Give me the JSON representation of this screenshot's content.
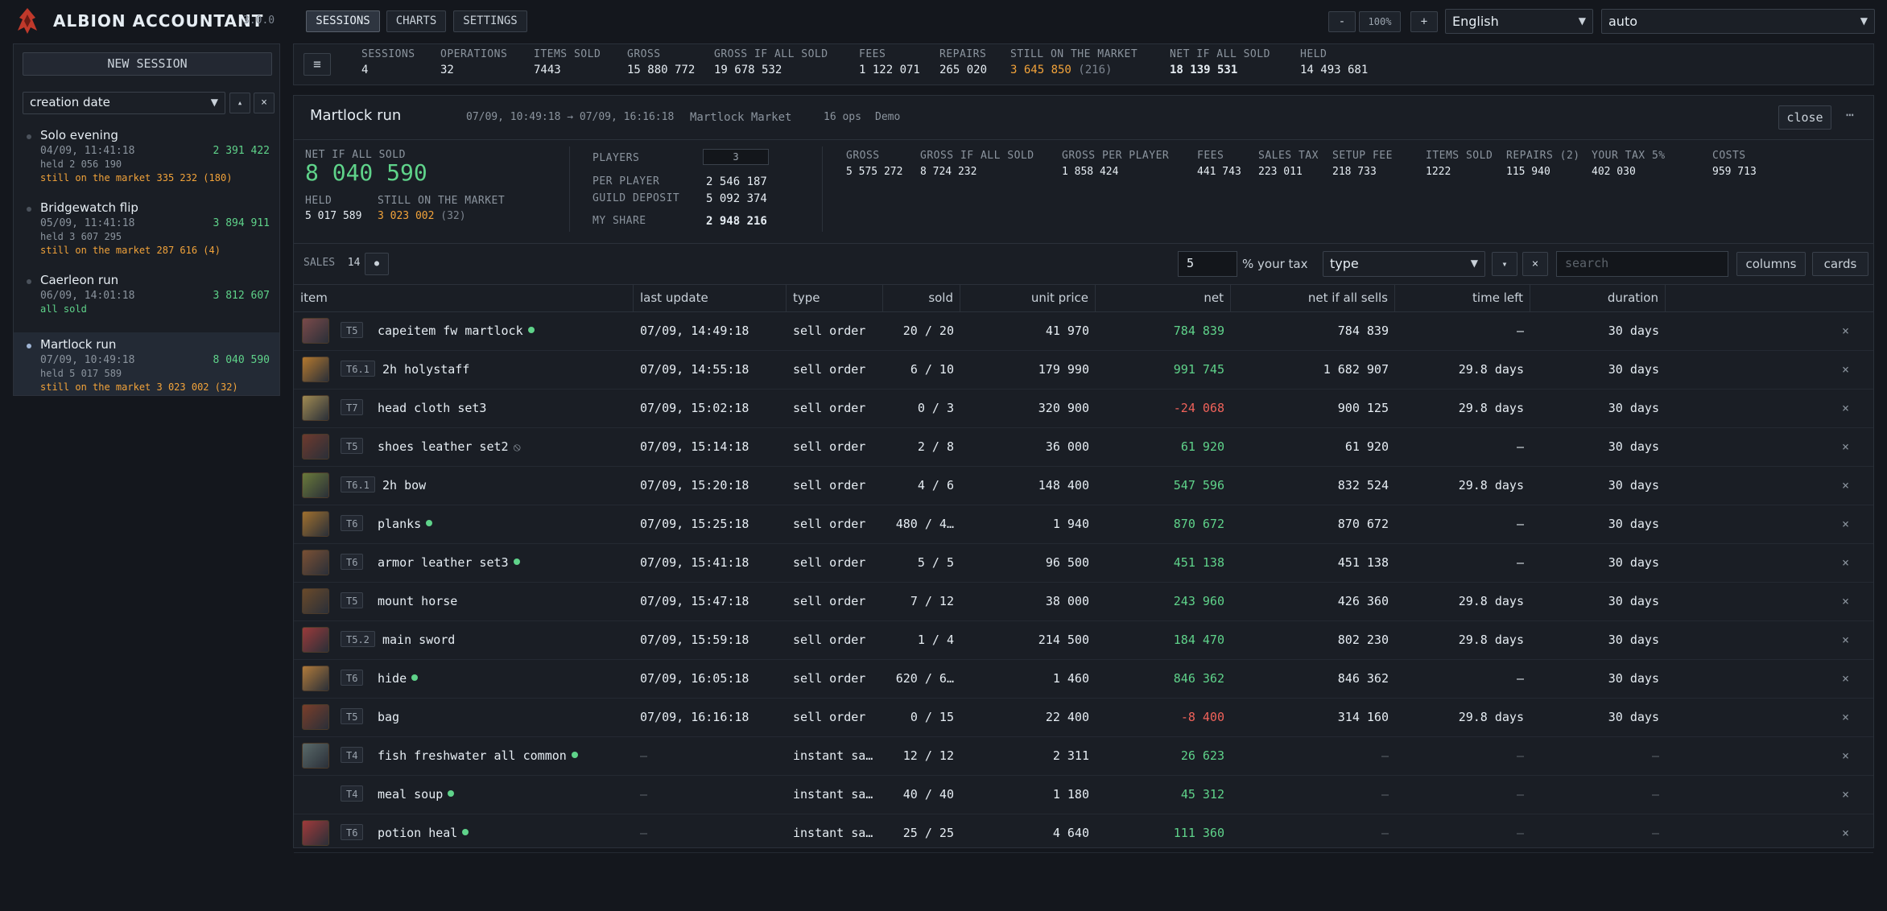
{
  "app": {
    "title": "ALBION ACCOUNTANT",
    "version": "3.0.0"
  },
  "nav": {
    "tabs": [
      "SESSIONS",
      "CHARTS",
      "SETTINGS"
    ],
    "active": 0
  },
  "zoom": {
    "minus": "-",
    "level": "100%",
    "plus": "+"
  },
  "language": {
    "selected": "English"
  },
  "theme": {
    "selected": "auto"
  },
  "sidebar": {
    "new_session": "NEW SESSION",
    "sort": {
      "selected": "creation date",
      "dir_label": "▴",
      "clear_label": "×"
    },
    "sessions": [
      {
        "name": "Solo evening",
        "date": "04/09, 11:41:18",
        "value": "2 391 422",
        "held": "held 2 056 190",
        "status": "still on the market 335 232 (180)",
        "status_ok": false,
        "active": false
      },
      {
        "name": "Bridgewatch flip",
        "date": "05/09, 11:41:18",
        "value": "3 894 911",
        "held": "held 3 607 295",
        "status": "still on the market 287 616 (4)",
        "status_ok": false,
        "active": false
      },
      {
        "name": "Caerleon run",
        "date": "06/09, 14:01:18",
        "value": "3 812 607",
        "held": "",
        "status": "all sold",
        "status_ok": true,
        "active": false
      },
      {
        "name": "Martlock run",
        "date": "07/09, 10:49:18",
        "value": "8 040 590",
        "held": "held 5 017 589",
        "status": "still on the market 3 023 002 (32)",
        "status_ok": false,
        "active": true
      }
    ]
  },
  "summary": {
    "menu_label": "≡",
    "sessions": {
      "label": "SESSIONS",
      "value": "4"
    },
    "operations": {
      "label": "OPERATIONS",
      "value": "32"
    },
    "items_sold": {
      "label": "ITEMS SOLD",
      "value": "7443"
    },
    "gross": {
      "label": "GROSS",
      "value": "15 880 772"
    },
    "gross_all": {
      "label": "GROSS IF ALL SOLD",
      "value": "19 678 532"
    },
    "fees": {
      "label": "FEES",
      "value": "1 122 071"
    },
    "repairs": {
      "label": "REPAIRS",
      "value": "265 020"
    },
    "on_market": {
      "label": "STILL ON THE MARKET",
      "value": "3 645 850",
      "count": "(216)"
    },
    "net_all": {
      "label": "NET IF ALL SOLD",
      "value": "18 139 531"
    },
    "held": {
      "label": "HELD",
      "value": "14 493 681"
    }
  },
  "session": {
    "title": "Martlock run",
    "range": "07/09, 10:49:18 → 07/09, 16:16:18",
    "market": "Martlock Market",
    "ops": "16 ops",
    "tag": "Demo",
    "close_label": "close",
    "more_label": "⋯",
    "net_label": "NET IF ALL SOLD",
    "net_value": "8 040 590",
    "held_label": "HELD",
    "held_value": "5 017 589",
    "market_label": "STILL ON THE MARKET",
    "market_value": "3 023 002",
    "market_count": "(32)",
    "players_label": "PLAYERS",
    "players_value": "3",
    "per_player_label": "PER PLAYER",
    "per_player_value": "2 546 187",
    "guild_label": "GUILD DEPOSIT",
    "guild_value": "5 092 374",
    "share_label": "MY SHARE",
    "share_value": "2 948 216",
    "stats": [
      {
        "label": "GROSS",
        "value": "5 575 272"
      },
      {
        "label": "GROSS IF ALL SOLD",
        "value": "8 724 232"
      },
      {
        "label": "GROSS PER PLAYER",
        "value": "1 858 424"
      },
      {
        "label": "FEES",
        "value": "441 743"
      },
      {
        "label": "SALES TAX",
        "value": "223 011"
      },
      {
        "label": "SETUP FEE",
        "value": "218 733"
      },
      {
        "label": "ITEMS SOLD",
        "value": "1222"
      },
      {
        "label": "REPAIRS (2)",
        "value": "115 940"
      },
      {
        "label": "YOUR TAX 5%",
        "value": "402 030"
      },
      {
        "label": "COSTS",
        "value": "959 713"
      }
    ]
  },
  "sales": {
    "label": "SALES",
    "count": "14",
    "toggle_label": "●",
    "tax_value": "5",
    "tax_label": "% your tax",
    "type_filter": "type",
    "sort_dir": "▾",
    "clear_label": "×",
    "search_placeholder": "search",
    "columns_label": "columns",
    "cards_label": "cards",
    "headers": [
      "item",
      "last update",
      "type",
      "sold",
      "unit price",
      "net",
      "net if all sells",
      "time left",
      "duration"
    ],
    "rows": [
      {
        "tier": "T5",
        "name": "capeitem fw martlock",
        "dot": true,
        "ban": false,
        "updated": "07/09, 14:49:18",
        "type": "sell order",
        "sold": "20 / 20",
        "price": "41 970",
        "net": "784 839",
        "net_sign": "pos",
        "net_all": "784 839",
        "time_left": "—",
        "duration": "30 days",
        "thumb": "#7a4a4a"
      },
      {
        "tier": "T6.1",
        "name": "2h holystaff",
        "dot": false,
        "ban": false,
        "updated": "07/09, 14:55:18",
        "type": "sell order",
        "sold": "6 / 10",
        "price": "179 990",
        "net": "991 745",
        "net_sign": "pos",
        "net_all": "1 682 907",
        "time_left": "29.8 days",
        "duration": "30 days",
        "thumb": "#b4782e"
      },
      {
        "tier": "T7",
        "name": "head cloth set3",
        "dot": false,
        "ban": false,
        "updated": "07/09, 15:02:18",
        "type": "sell order",
        "sold": "0 / 3",
        "price": "320 900",
        "net": "-24 068",
        "net_sign": "neg",
        "net_all": "900 125",
        "time_left": "29.8 days",
        "duration": "30 days",
        "thumb": "#a08a52"
      },
      {
        "tier": "T5",
        "name": "shoes leather set2",
        "dot": false,
        "ban": true,
        "updated": "07/09, 15:14:18",
        "type": "sell order",
        "sold": "2 / 8",
        "price": "36 000",
        "net": "61 920",
        "net_sign": "pos",
        "net_all": "61 920",
        "time_left": "—",
        "duration": "30 days",
        "thumb": "#6e3a2e"
      },
      {
        "tier": "T6.1",
        "name": "2h bow",
        "dot": false,
        "ban": false,
        "updated": "07/09, 15:20:18",
        "type": "sell order",
        "sold": "4 / 6",
        "price": "148 400",
        "net": "547 596",
        "net_sign": "pos",
        "net_all": "832 524",
        "time_left": "29.8 days",
        "duration": "30 days",
        "thumb": "#6a7a3a"
      },
      {
        "tier": "T6",
        "name": "planks",
        "dot": true,
        "ban": false,
        "updated": "07/09, 15:25:18",
        "type": "sell order",
        "sold": "480 / 4…",
        "price": "1 940",
        "net": "870 672",
        "net_sign": "pos",
        "net_all": "870 672",
        "time_left": "—",
        "duration": "30 days",
        "thumb": "#a0702e"
      },
      {
        "tier": "T6",
        "name": "armor leather set3",
        "dot": true,
        "ban": false,
        "updated": "07/09, 15:41:18",
        "type": "sell order",
        "sold": "5 / 5",
        "price": "96 500",
        "net": "451 138",
        "net_sign": "pos",
        "net_all": "451 138",
        "time_left": "—",
        "duration": "30 days",
        "thumb": "#7a5034"
      },
      {
        "tier": "T5",
        "name": "mount horse",
        "dot": false,
        "ban": false,
        "updated": "07/09, 15:47:18",
        "type": "sell order",
        "sold": "7 / 12",
        "price": "38 000",
        "net": "243 960",
        "net_sign": "pos",
        "net_all": "426 360",
        "time_left": "29.8 days",
        "duration": "30 days",
        "thumb": "#6a4a2a"
      },
      {
        "tier": "T5.2",
        "name": "main sword",
        "dot": false,
        "ban": false,
        "updated": "07/09, 15:59:18",
        "type": "sell order",
        "sold": "1 / 4",
        "price": "214 500",
        "net": "184 470",
        "net_sign": "pos",
        "net_all": "802 230",
        "time_left": "29.8 days",
        "duration": "30 days",
        "thumb": "#9a3a3a"
      },
      {
        "tier": "T6",
        "name": "hide",
        "dot": true,
        "ban": false,
        "updated": "07/09, 16:05:18",
        "type": "sell order",
        "sold": "620 / 6…",
        "price": "1 460",
        "net": "846 362",
        "net_sign": "pos",
        "net_all": "846 362",
        "time_left": "—",
        "duration": "30 days",
        "thumb": "#b07a3a"
      },
      {
        "tier": "T5",
        "name": "bag",
        "dot": false,
        "ban": false,
        "updated": "07/09, 16:16:18",
        "type": "sell order",
        "sold": "0 / 15",
        "price": "22 400",
        "net": "-8 400",
        "net_sign": "neg",
        "net_all": "314 160",
        "time_left": "29.8 days",
        "duration": "30 days",
        "thumb": "#7a3e2a"
      },
      {
        "tier": "T4",
        "name": "fish freshwater all common",
        "dot": true,
        "ban": false,
        "updated": "—",
        "type": "instant sa…",
        "sold": "12 / 12",
        "price": "2 311",
        "net": "26 623",
        "net_sign": "pos",
        "net_all": "—",
        "time_left": "—",
        "duration": "—",
        "thumb": "#5a6a6a"
      },
      {
        "tier": "T4",
        "name": "meal soup",
        "dot": true,
        "ban": false,
        "updated": "—",
        "type": "instant sa…",
        "sold": "40 / 40",
        "price": "1 180",
        "net": "45 312",
        "net_sign": "pos",
        "net_all": "—",
        "time_left": "—",
        "duration": "—",
        "thumb": ""
      },
      {
        "tier": "T6",
        "name": "potion heal",
        "dot": true,
        "ban": false,
        "updated": "—",
        "type": "instant sa…",
        "sold": "25 / 25",
        "price": "4 640",
        "net": "111 360",
        "net_sign": "pos",
        "net_all": "—",
        "time_left": "—",
        "duration": "—",
        "thumb": "#a03a3a"
      }
    ],
    "remove_label": "×"
  }
}
